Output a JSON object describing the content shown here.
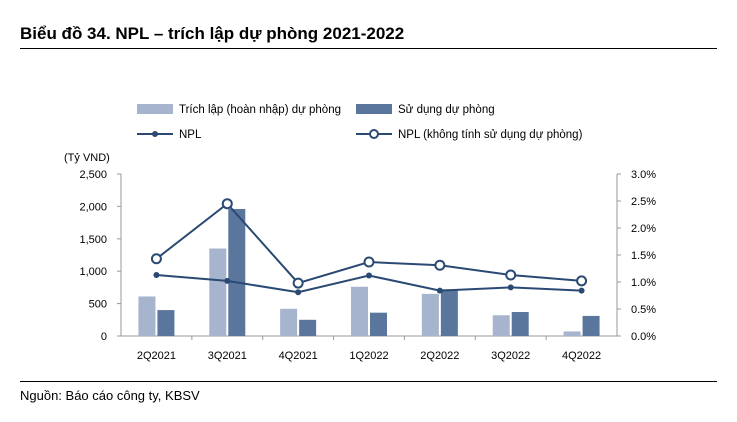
{
  "title": "Biểu đồ 34. NPL – trích lập dự phòng 2021-2022",
  "source": "Nguồn: Báo cáo công ty, KBSV",
  "colors": {
    "bar_provision": "#a6b4cd",
    "bar_used": "#5b769d",
    "line_npl": "#2a4a73",
    "line_npl_excl": "#2a4a73",
    "axis": "#999999"
  },
  "chart_data": {
    "type": "bar+line",
    "categories": [
      "2Q2021",
      "3Q2021",
      "4Q2021",
      "1Q2022",
      "2Q2022",
      "3Q2022",
      "4Q2022"
    ],
    "y_left_label": "(Tỷ VND)",
    "y_left_range": [
      0,
      2500
    ],
    "y_left_ticks": [
      "0",
      "500",
      "1,000",
      "1,500",
      "2,000",
      "2,500"
    ],
    "y_right_range": [
      0,
      3.0
    ],
    "y_right_ticks": [
      "0.0%",
      "0.5%",
      "1.0%",
      "1.5%",
      "2.0%",
      "2.5%",
      "3.0%"
    ],
    "bar_series": [
      {
        "name": "Trích lập (hoàn nhập) dự phòng",
        "values": [
          610,
          1350,
          420,
          760,
          650,
          320,
          70
        ]
      },
      {
        "name": "Sử dụng dự phòng",
        "values": [
          400,
          1960,
          250,
          360,
          720,
          370,
          310
        ]
      }
    ],
    "line_series": [
      {
        "name": "NPL",
        "values": [
          1.13,
          1.02,
          0.81,
          1.12,
          0.84,
          0.9,
          0.84
        ]
      },
      {
        "name": "NPL (không tính sử dụng dự phòng)",
        "values": [
          1.43,
          2.45,
          0.98,
          1.37,
          1.31,
          1.13,
          1.02
        ]
      }
    ]
  }
}
